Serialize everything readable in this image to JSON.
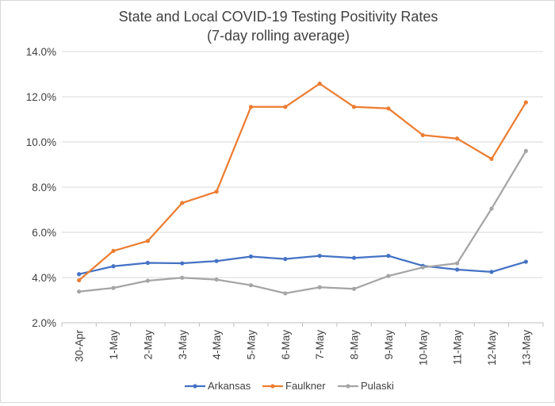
{
  "chart_data": {
    "type": "line",
    "title": "State and Local COVID-19 Testing Positivity Rates",
    "subtitle": "(7-day rolling average)",
    "xlabel": "",
    "ylabel": "",
    "categories": [
      "30-Apr",
      "1-May",
      "2-May",
      "3-May",
      "4-May",
      "5-May",
      "6-May",
      "7-May",
      "8-May",
      "9-May",
      "10-May",
      "11-May",
      "12-May",
      "13-May"
    ],
    "ylim": [
      2.0,
      14.0
    ],
    "yticks": [
      "2.0%",
      "4.0%",
      "6.0%",
      "8.0%",
      "10.0%",
      "12.0%",
      "14.0%"
    ],
    "yticks_values": [
      2,
      4,
      6,
      8,
      10,
      12,
      14
    ],
    "grid": true,
    "legend_position": "bottom",
    "series": [
      {
        "name": "Arkansas",
        "color": "#4472c4",
        "values": [
          4.15,
          4.5,
          4.65,
          4.63,
          4.73,
          4.93,
          4.82,
          4.96,
          4.87,
          4.96,
          4.52,
          4.35,
          4.25,
          4.7
        ]
      },
      {
        "name": "Faulkner",
        "color": "#ed7d31",
        "values": [
          3.88,
          5.18,
          5.62,
          7.3,
          7.8,
          11.55,
          11.55,
          12.58,
          11.55,
          11.48,
          10.3,
          10.15,
          9.25,
          11.75
        ]
      },
      {
        "name": "Pulaski",
        "color": "#a5a5a5",
        "values": [
          3.38,
          3.54,
          3.86,
          3.99,
          3.91,
          3.66,
          3.3,
          3.57,
          3.5,
          4.07,
          4.45,
          4.63,
          7.05,
          9.6
        ]
      }
    ]
  }
}
